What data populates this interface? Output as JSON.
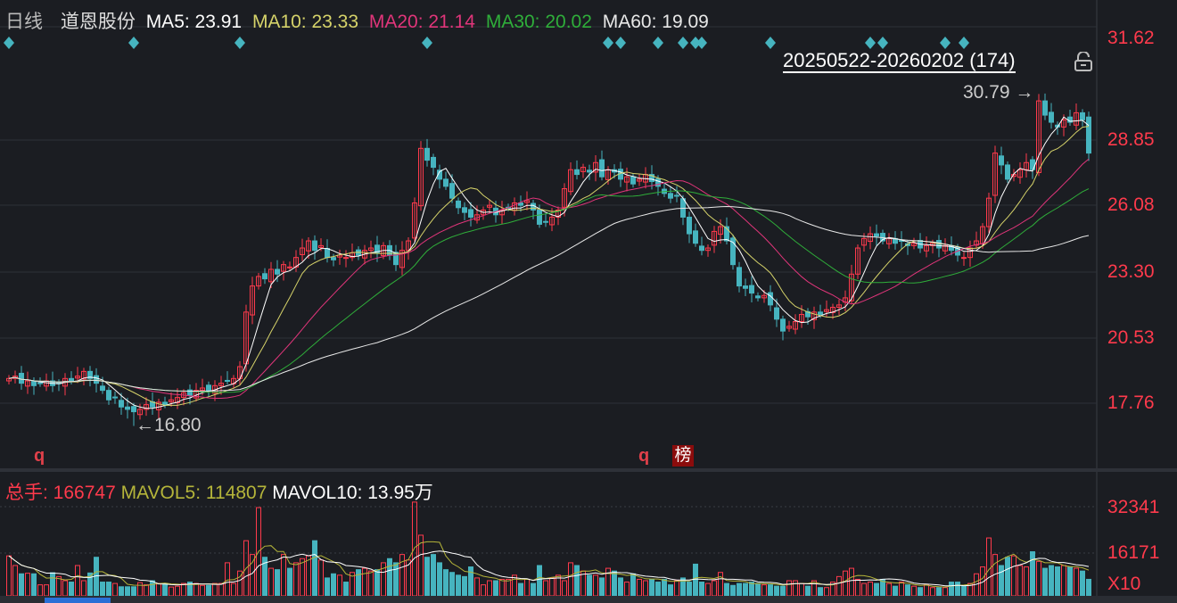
{
  "header": {
    "period": "日线",
    "name": "道恩股份",
    "ma5": "MA5: 23.91",
    "ma10": "MA10: 23.33",
    "ma20": "MA20: 21.14",
    "ma30": "MA30: 20.02",
    "ma60": "MA60: 19.09"
  },
  "colors": {
    "up": "#ff3a4c",
    "down": "#46b4bf",
    "ma5": "#ffffff",
    "ma10": "#d6d36a",
    "ma20": "#e0357a",
    "ma30": "#2fae3a",
    "ma60": "#e8e8e8",
    "marker": "#46b4bf",
    "mavol5": "#b5b53a"
  },
  "range_label": "20250522-20260202 (174)",
  "annotations": {
    "high": "30.79",
    "low": "16.80"
  },
  "tags": {
    "q1": "q",
    "q2": "q",
    "bang": "榜"
  },
  "volume_header": {
    "total": "总手: 166747",
    "mavol5": "MAVOL5: 114807",
    "mavol10": "MAVOL10: 13.95万"
  },
  "chart_data": [
    {
      "type": "candlestick",
      "title": "道恩股份 日线",
      "y_ticks": [
        "31.62",
        "28.85",
        "26.08",
        "23.30",
        "20.53",
        "17.76"
      ],
      "ylim": [
        15.0,
        33.6
      ],
      "count": 174,
      "closes": [
        18.8,
        18.9,
        18.6,
        18.7,
        18.5,
        18.6,
        18.7,
        18.5,
        18.6,
        18.8,
        18.7,
        18.9,
        19.1,
        18.8,
        18.6,
        18.3,
        17.9,
        18.0,
        17.6,
        17.5,
        17.4,
        17.5,
        17.7,
        17.6,
        17.8,
        17.7,
        17.9,
        18.0,
        18.2,
        18.1,
        18.3,
        18.4,
        18.3,
        18.5,
        18.6,
        18.7,
        18.8,
        19.3,
        21.6,
        22.7,
        23.1,
        23.0,
        23.4,
        23.2,
        23.6,
        23.5,
        23.9,
        24.3,
        24.6,
        24.2,
        24.4,
        23.9,
        23.8,
        24.0,
        23.9,
        24.1,
        24.0,
        24.2,
        24.3,
        24.1,
        24.4,
        24.0,
        23.6,
        24.2,
        24.6,
        26.2,
        28.5,
        28.0,
        27.7,
        27.2,
        26.9,
        26.4,
        26.0,
        25.8,
        25.6,
        25.7,
        25.9,
        26.1,
        25.7,
        25.9,
        26.0,
        26.2,
        26.1,
        26.3,
        25.9,
        25.3,
        25.4,
        25.6,
        25.9,
        26.8,
        27.6,
        27.4,
        27.7,
        27.5,
        27.9,
        27.3,
        27.6,
        27.5,
        27.2,
        27.3,
        27.0,
        27.2,
        27.4,
        27.1,
        26.9,
        26.6,
        26.4,
        26.5,
        25.6,
        24.9,
        24.5,
        24.2,
        24.3,
        25.0,
        25.2,
        24.6,
        23.6,
        22.7,
        22.6,
        22.4,
        22.2,
        22.3,
        21.9,
        21.3,
        20.8,
        21.0,
        21.2,
        21.5,
        21.4,
        21.6,
        21.5,
        21.7,
        21.8,
        21.9,
        22.2,
        23.2,
        24.3,
        24.7,
        24.9,
        24.8,
        24.6,
        24.7,
        24.5,
        24.6,
        24.4,
        24.5,
        24.3,
        24.4,
        24.5,
        24.3,
        24.4,
        24.2,
        24.0,
        23.9,
        24.3,
        24.6,
        25.2,
        26.4,
        28.3,
        27.8,
        27.2,
        27.4,
        27.6,
        27.9,
        27.6,
        30.5,
        29.9,
        29.6,
        29.4,
        29.7,
        29.6,
        30.0,
        29.7,
        28.3
      ],
      "high": 30.79,
      "low": 16.8,
      "event_markers": [
        0,
        20,
        37,
        67,
        96,
        98,
        104,
        108,
        110,
        111,
        122,
        138,
        140,
        150,
        153
      ],
      "tag_positions": {
        "q1": 5,
        "q2": 102,
        "bang": 108
      }
    },
    {
      "type": "bar",
      "title": "成交量",
      "y_ticks": [
        "32341",
        "16171",
        "X10"
      ],
      "ylim": [
        0,
        34000
      ],
      "volumes": [
        14500,
        11000,
        8000,
        8200,
        8000,
        4000,
        4000,
        8400,
        7000,
        5500,
        5000,
        11000,
        5500,
        8300,
        14000,
        5000,
        5000,
        4500,
        3300,
        3300,
        3300,
        4800,
        4000,
        5500,
        4500,
        4500,
        3200,
        3500,
        4500,
        5000,
        4500,
        3800,
        3800,
        4500,
        4500,
        12000,
        4500,
        9000,
        20000,
        15000,
        32000,
        14000,
        10000,
        9500,
        15000,
        10000,
        12000,
        13500,
        14500,
        20000,
        13000,
        6500,
        8000,
        7500,
        5000,
        8500,
        9500,
        10000,
        9000,
        9500,
        12000,
        13500,
        12000,
        15000,
        13000,
        34000,
        22000,
        14000,
        15000,
        12000,
        9500,
        8500,
        7500,
        7000,
        10500,
        6500,
        4000,
        5500,
        5500,
        6000,
        6000,
        7500,
        4500,
        6000,
        4500,
        11000,
        5500,
        6500,
        7500,
        5500,
        12000,
        11000,
        9000,
        7500,
        7500,
        6500,
        10000,
        9000,
        6500,
        5000,
        8000,
        6000,
        5500,
        6000,
        5000,
        6000,
        4000,
        5500,
        6500,
        5000,
        11500,
        5000,
        4500,
        5500,
        8500,
        4500,
        3800,
        4500,
        4500,
        5000,
        4500,
        4000,
        4000,
        3500,
        3500,
        5500,
        5500,
        4500,
        3500,
        5500,
        3000,
        3000,
        5000,
        7000,
        9000,
        10000,
        6000,
        4500,
        5000,
        4500,
        6000,
        4500,
        3500,
        5000,
        4000,
        3500,
        3000,
        4000,
        3000,
        3000,
        3000,
        5000,
        5000,
        3500,
        4500,
        8000,
        10500,
        21000,
        15000,
        11000,
        14000,
        14500,
        11000,
        10500,
        16000,
        12500,
        10000,
        11000,
        10500,
        11000,
        10500,
        10000,
        9000,
        6000
      ]
    }
  ]
}
